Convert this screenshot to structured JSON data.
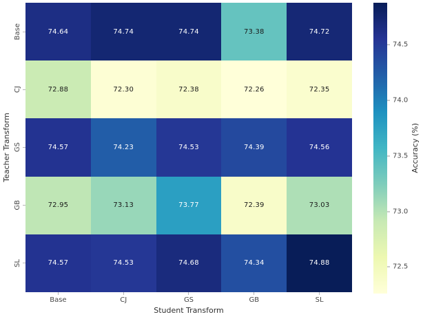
{
  "chart_data": {
    "type": "heatmap",
    "title": "",
    "xlabel": "Student Transform",
    "ylabel": "Teacher Transform",
    "colorbar_label": "Accuracy (%)",
    "x_categories": [
      "Base",
      "CJ",
      "GS",
      "GB",
      "SL"
    ],
    "y_categories": [
      "Base",
      "CJ",
      "GS",
      "GB",
      "SL"
    ],
    "values": [
      [
        74.64,
        74.74,
        74.74,
        73.38,
        74.72
      ],
      [
        72.88,
        72.3,
        72.38,
        72.26,
        72.35
      ],
      [
        74.57,
        74.23,
        74.53,
        74.39,
        74.56
      ],
      [
        72.95,
        73.13,
        73.77,
        72.39,
        73.03
      ],
      [
        74.57,
        74.53,
        74.68,
        74.34,
        74.88
      ]
    ],
    "vmin": 72.26,
    "vmax": 74.88,
    "colormap": "YlGnBu",
    "colorbar_ticks": [
      74.5,
      74.0,
      73.5,
      73.0,
      72.5
    ],
    "legend_position": "right",
    "grid": false,
    "cell_colors": [
      [
        "#1d2e84",
        "#142772",
        "#142772",
        "#65c3bf",
        "#162875"
      ],
      [
        "#cbebb4",
        "#fdfed4",
        "#f8fcca",
        "#ffffd9",
        "#fafdce"
      ],
      [
        "#233391",
        "#225da8",
        "#253795",
        "#24499e",
        "#243393"
      ],
      [
        "#bfe6b5",
        "#98d7b9",
        "#2b9fc2",
        "#f8fcc9",
        "#aedfb6"
      ],
      [
        "#233391",
        "#253795",
        "#1a2b7d",
        "#234fa1",
        "#081d58"
      ]
    ],
    "cell_text_colors": [
      [
        "#ffffff",
        "#ffffff",
        "#ffffff",
        "#1a1a1a",
        "#ffffff"
      ],
      [
        "#1a1a1a",
        "#1a1a1a",
        "#1a1a1a",
        "#1a1a1a",
        "#1a1a1a"
      ],
      [
        "#ffffff",
        "#ffffff",
        "#ffffff",
        "#ffffff",
        "#ffffff"
      ],
      [
        "#1a1a1a",
        "#1a1a1a",
        "#ffffff",
        "#1a1a1a",
        "#1a1a1a"
      ],
      [
        "#ffffff",
        "#ffffff",
        "#ffffff",
        "#ffffff",
        "#ffffff"
      ]
    ]
  },
  "colors": {
    "background": "#ffffff",
    "annotation_light": "#ffffff",
    "annotation_dark": "#1a1a1a",
    "tick_label": "#464646",
    "axis_title": "#2f2f2f",
    "tick_mark": "#b5b5b5",
    "colorbar_gradient_top_to_bottom": [
      "#081d58",
      "#253494",
      "#225ea8",
      "#1d91c0",
      "#41b6c4",
      "#7fcdbb",
      "#c7e9b4",
      "#edf8b1",
      "#ffffd9"
    ]
  }
}
